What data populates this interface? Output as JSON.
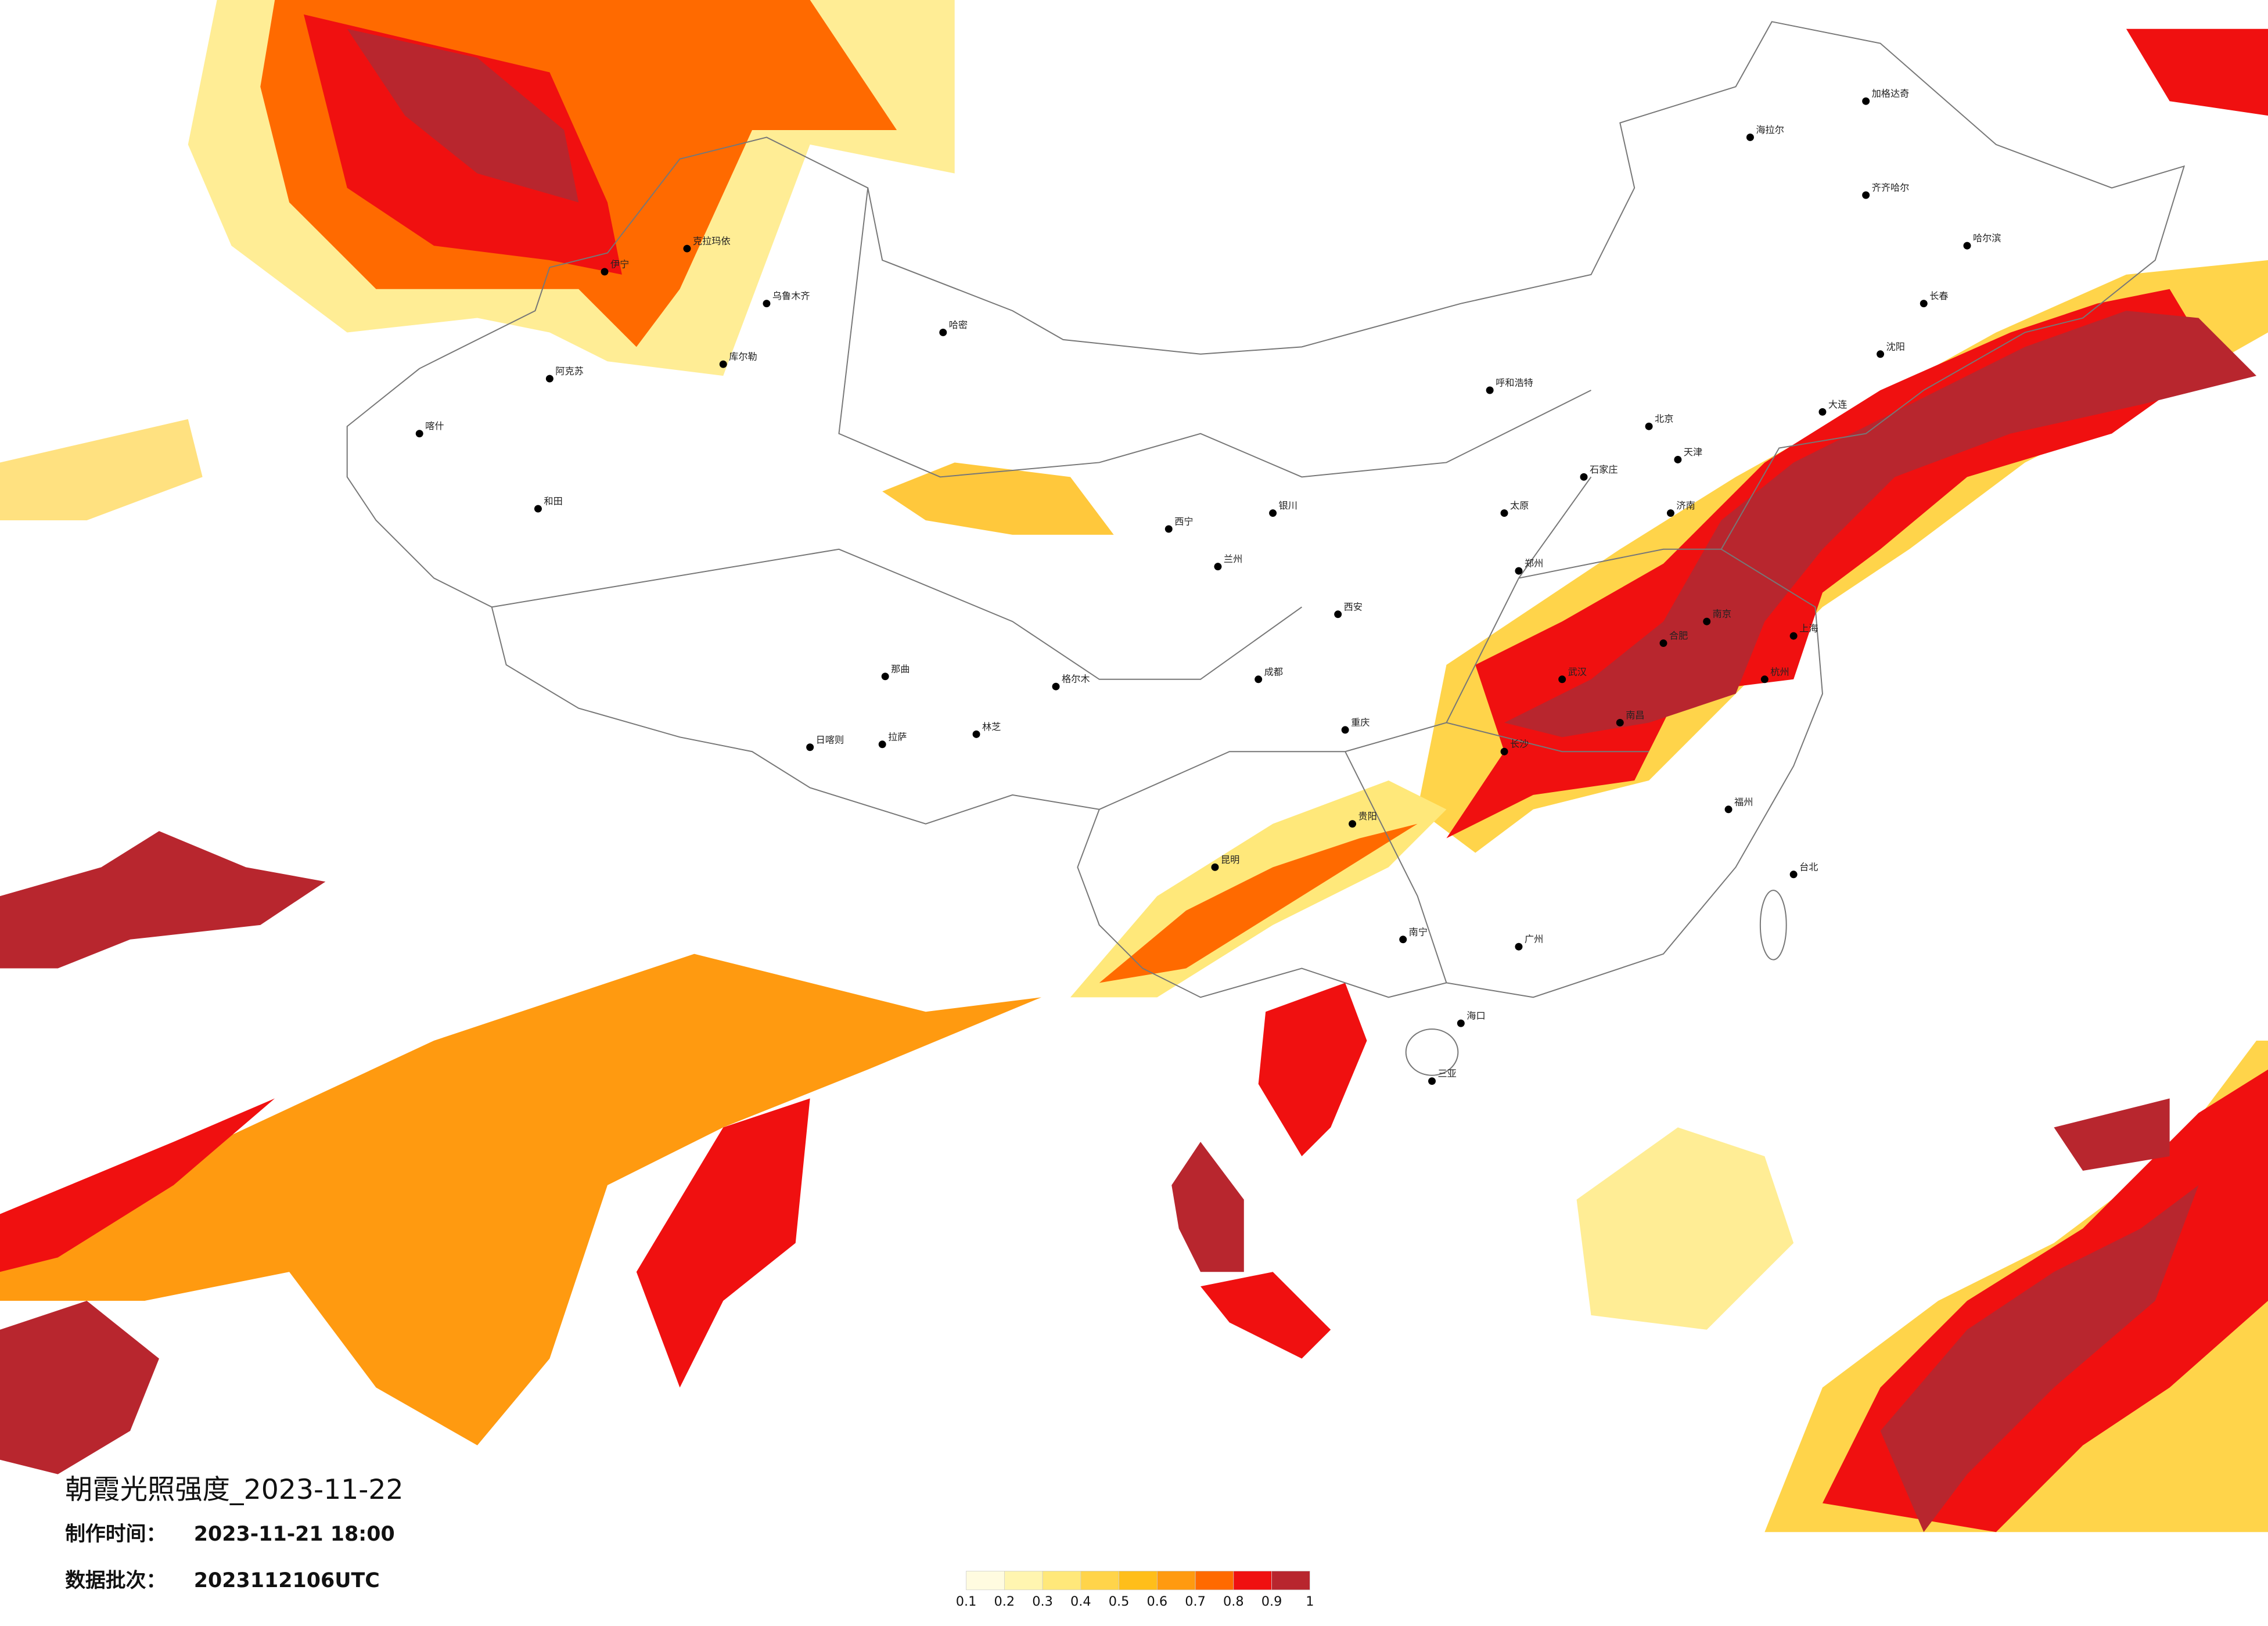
{
  "title": "朝霞光照强度_2023-11-22",
  "made_time": {
    "label": "制作时间：",
    "value": "2023-11-21 18:00"
  },
  "batch": {
    "label": "数据批次：",
    "value": "2023112106UTC"
  },
  "legend": {
    "labels": [
      0.1,
      0.2,
      0.3,
      0.4,
      0.5,
      0.6,
      0.7,
      0.8,
      0.9,
      1
    ],
    "colors": [
      "#fffbe0",
      "#fff5b0",
      "#ffe87a",
      "#ffd44a",
      "#ffbe1a",
      "#ff9a10",
      "#ff6a00",
      "#f01010",
      "#b8262e"
    ]
  },
  "cities": [
    "乌鲁木齐",
    "克拉玛依",
    "伊宁",
    "喀什",
    "和田",
    "哈密",
    "阿克苏",
    "库尔勒",
    "拉萨",
    "日喀则",
    "林芝",
    "西宁",
    "兰州",
    "银川",
    "呼和浩特",
    "北京",
    "天津",
    "石家庄",
    "太原",
    "济南",
    "西安",
    "郑州",
    "武汉",
    "南京",
    "上海",
    "杭州",
    "合肥",
    "长沙",
    "南昌",
    "福州",
    "广州",
    "南宁",
    "海口",
    "贵阳",
    "昆明",
    "成都",
    "重庆",
    "沈阳",
    "长春",
    "哈尔滨",
    "齐齐哈尔",
    "海拉尔",
    "加格达奇",
    "大连",
    "台北",
    "三亚",
    "格尔木",
    "那曲"
  ]
}
